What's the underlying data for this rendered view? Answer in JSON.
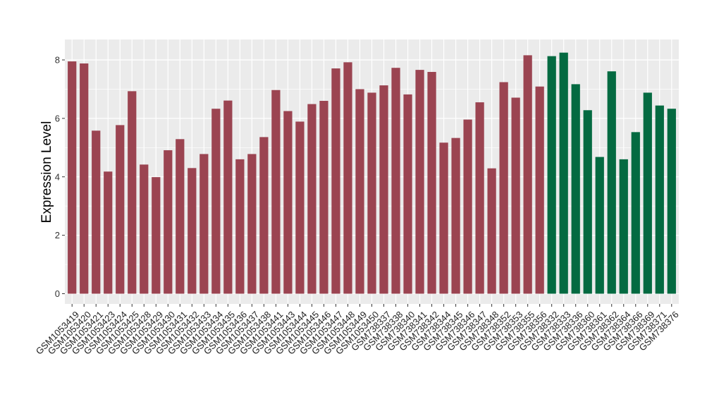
{
  "chart_data": {
    "type": "bar",
    "ylabel": "Expression Level",
    "xlabel": "",
    "title": "",
    "ylim": [
      -0.35,
      8.7
    ],
    "yticks": [
      0,
      2,
      4,
      6,
      8
    ],
    "grid": true,
    "legend": "none",
    "colors": {
      "group1": "#9b4451",
      "group2": "#046a41",
      "panel": "#ebebeb",
      "gridline": "#ffffff"
    },
    "categories": [
      "GSM1053419",
      "GSM1053420",
      "GSM1053421",
      "GSM1053423",
      "GSM1053424",
      "GSM1053425",
      "GSM1053428",
      "GSM1053429",
      "GSM1053430",
      "GSM1053431",
      "GSM1053432",
      "GSM1053433",
      "GSM1053434",
      "GSM1053435",
      "GSM1053436",
      "GSM1053437",
      "GSM1053438",
      "GSM1053441",
      "GSM1053443",
      "GSM1053444",
      "GSM1053445",
      "GSM1053446",
      "GSM1053447",
      "GSM1053448",
      "GSM1053449",
      "GSM1053450",
      "GSM738337",
      "GSM738338",
      "GSM738340",
      "GSM738341",
      "GSM738342",
      "GSM738344",
      "GSM738345",
      "GSM738346",
      "GSM738347",
      "GSM738348",
      "GSM738352",
      "GSM738353",
      "GSM738355",
      "GSM738356",
      "GSM738332",
      "GSM738333",
      "GSM738336",
      "GSM738360",
      "GSM738361",
      "GSM738362",
      "GSM738364",
      "GSM738366",
      "GSM738369",
      "GSM738371",
      "GSM738376"
    ],
    "values": [
      7.95,
      7.88,
      5.58,
      4.18,
      5.77,
      6.93,
      4.42,
      3.99,
      4.91,
      5.29,
      4.3,
      4.78,
      6.33,
      6.61,
      4.6,
      4.78,
      5.36,
      6.97,
      6.25,
      5.89,
      6.49,
      6.6,
      7.71,
      7.92,
      7.0,
      6.88,
      7.13,
      7.73,
      6.82,
      7.66,
      7.59,
      5.17,
      5.33,
      5.96,
      6.55,
      4.29,
      7.24,
      6.71,
      8.16,
      7.09,
      8.13,
      8.25,
      7.17,
      6.28,
      4.68,
      7.61,
      4.6,
      5.53,
      6.88,
      6.44,
      6.33
    ],
    "groups": [
      1,
      1,
      1,
      1,
      1,
      1,
      1,
      1,
      1,
      1,
      1,
      1,
      1,
      1,
      1,
      1,
      1,
      1,
      1,
      1,
      1,
      1,
      1,
      1,
      1,
      1,
      1,
      1,
      1,
      1,
      1,
      1,
      1,
      1,
      1,
      1,
      1,
      1,
      1,
      1,
      2,
      2,
      2,
      2,
      2,
      2,
      2,
      2,
      2,
      2,
      2
    ]
  }
}
